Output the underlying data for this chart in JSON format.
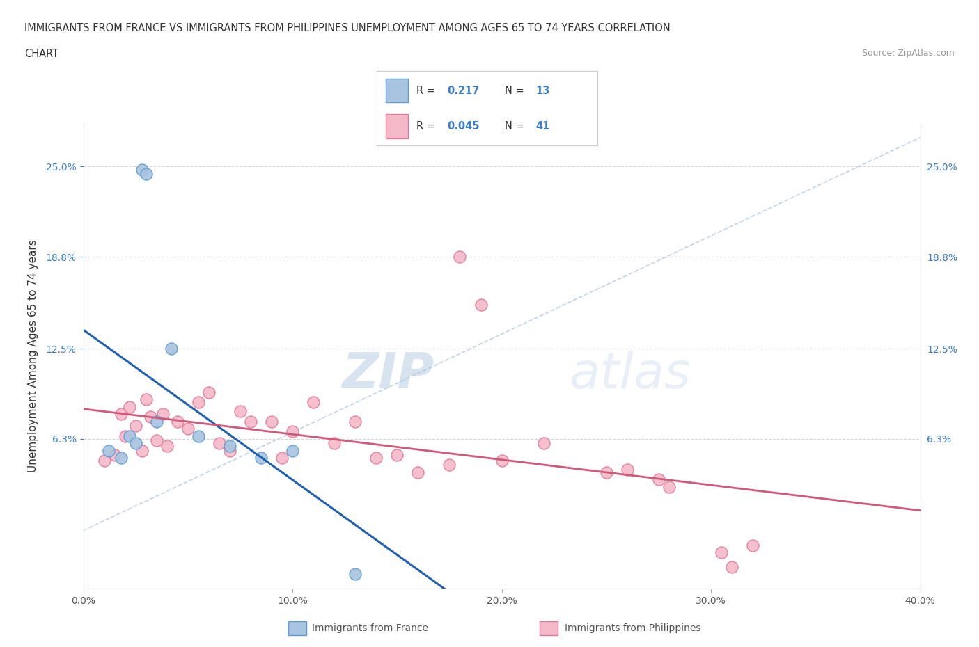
{
  "title_line1": "IMMIGRANTS FROM FRANCE VS IMMIGRANTS FROM PHILIPPINES UNEMPLOYMENT AMONG AGES 65 TO 74 YEARS CORRELATION",
  "title_line2": "CHART",
  "source_text": "Source: ZipAtlas.com",
  "ylabel": "Unemployment Among Ages 65 to 74 years",
  "xlabel_france": "Immigrants from France",
  "xlabel_philippines": "Immigrants from Philippines",
  "xlim": [
    0.0,
    40.0
  ],
  "ylim": [
    -4.0,
    28.0
  ],
  "yticks": [
    6.3,
    12.5,
    18.8,
    25.0
  ],
  "ytick_labels": [
    "6.3%",
    "12.5%",
    "18.8%",
    "25.0%"
  ],
  "xticks": [
    0.0,
    10.0,
    20.0,
    30.0,
    40.0
  ],
  "xtick_labels": [
    "0.0%",
    "10.0%",
    "20.0%",
    "30.0%",
    "40.0%"
  ],
  "right_ytick_values": [
    6.3,
    12.5,
    18.8,
    25.0
  ],
  "right_ytick_labels": [
    "6.3%",
    "12.5%",
    "18.8%",
    "25.0%"
  ],
  "france_color": "#a8c4e0",
  "france_edge_color": "#5b9bd5",
  "france_line_color": "#2060b0",
  "philippines_color": "#f4b8c8",
  "philippines_edge_color": "#e07898",
  "philippines_line_color": "#d05878",
  "france_R": 0.217,
  "france_N": 13,
  "philippines_R": 0.045,
  "philippines_N": 41,
  "watermark_zip": "ZIP",
  "watermark_atlas": "atlas",
  "diag_line_color": "#b0c8e0",
  "france_scatter_x": [
    1.2,
    1.8,
    2.2,
    2.5,
    2.8,
    3.0,
    3.5,
    4.2,
    5.5,
    7.0,
    8.5,
    10.0,
    13.0
  ],
  "france_scatter_y": [
    5.5,
    5.0,
    6.5,
    6.0,
    24.8,
    24.5,
    7.5,
    12.5,
    6.5,
    5.8,
    5.0,
    5.5,
    -3.0
  ],
  "philippines_scatter_x": [
    1.0,
    1.5,
    1.8,
    2.0,
    2.2,
    2.5,
    2.8,
    3.0,
    3.2,
    3.5,
    3.8,
    4.0,
    4.5,
    5.0,
    5.5,
    6.0,
    6.5,
    7.0,
    7.5,
    8.0,
    9.0,
    9.5,
    10.0,
    11.0,
    12.0,
    13.0,
    14.0,
    15.0,
    16.0,
    17.5,
    18.0,
    19.0,
    20.0,
    22.0,
    25.0,
    26.0,
    27.5,
    28.0,
    30.5,
    31.0,
    32.0
  ],
  "philippines_scatter_y": [
    4.8,
    5.2,
    8.0,
    6.5,
    8.5,
    7.2,
    5.5,
    9.0,
    7.8,
    6.2,
    8.0,
    5.8,
    7.5,
    7.0,
    8.8,
    9.5,
    6.0,
    5.5,
    8.2,
    7.5,
    7.5,
    5.0,
    6.8,
    8.8,
    6.0,
    7.5,
    5.0,
    5.2,
    4.0,
    4.5,
    18.8,
    15.5,
    4.8,
    6.0,
    4.0,
    4.2,
    3.5,
    3.0,
    -1.5,
    -2.5,
    -1.0
  ]
}
